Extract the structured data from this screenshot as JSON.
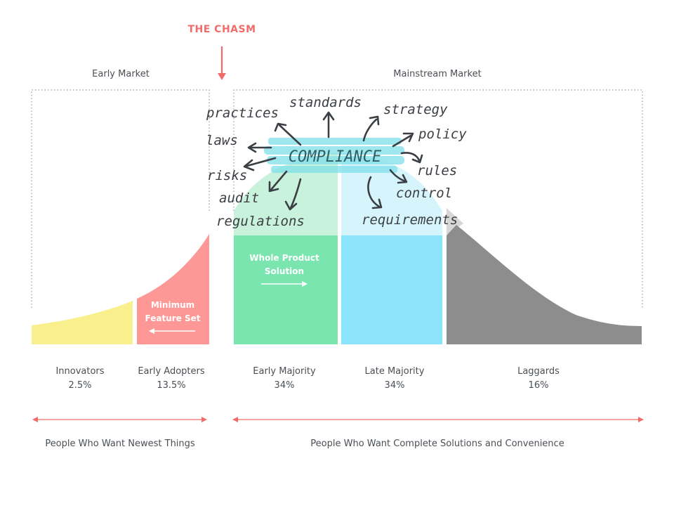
{
  "chasm": {
    "label": "THE CHASM",
    "color": "#f26b6b"
  },
  "markets": {
    "early": "Early Market",
    "mainstream": "Mainstream Market"
  },
  "segments": [
    {
      "name": "Innovators",
      "share": "2.5%",
      "color": "#f9ef8d"
    },
    {
      "name": "Early Adopters",
      "share": "13.5%",
      "color": "#fe9896"
    },
    {
      "name": "Early Majority",
      "share": "34%",
      "color": "#7be5b0"
    },
    {
      "name": "Late Majority",
      "share": "34%",
      "color": "#8be4f9"
    },
    {
      "name": "Laggards",
      "share": "16%",
      "color": "#8d8d8d"
    }
  ],
  "boxes": {
    "minimum_feature_set": [
      "Minimum",
      "Feature Set"
    ],
    "whole_product_solution": [
      "Whole Product",
      "Solution"
    ]
  },
  "bottom_labels": {
    "early": "People Who Want Newest Things",
    "mainstream": "People Who Want Complete Solutions and Convenience"
  },
  "compliance": {
    "center": "COMPLIANCE",
    "highlight_color": "#7ee0ea",
    "words": [
      "practices",
      "standards",
      "strategy",
      "laws",
      "policy",
      "risks",
      "rules",
      "audit",
      "control",
      "regulations",
      "requirements"
    ]
  }
}
